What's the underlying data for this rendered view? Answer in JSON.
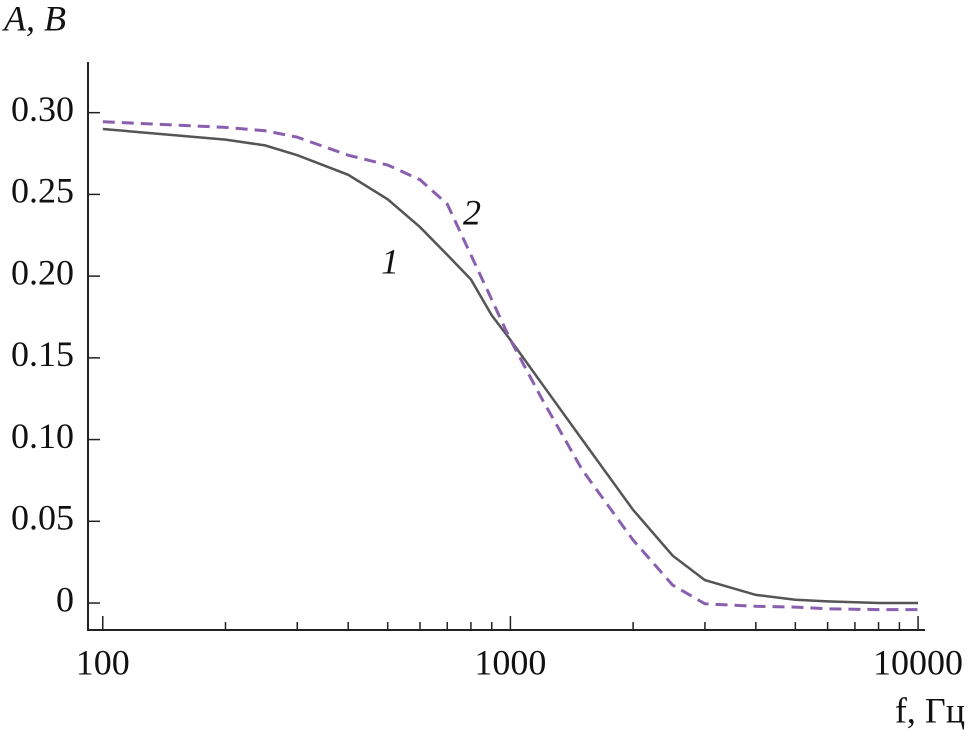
{
  "chart_data": {
    "type": "line",
    "y_label": "A, В",
    "x_label": "f, Гц",
    "log_x": true,
    "x": [
      100,
      200,
      250,
      300,
      400,
      500,
      600,
      700,
      800,
      900,
      1000,
      1200,
      1500,
      2000,
      2500,
      3000,
      4000,
      5000,
      6000,
      8000,
      10000
    ],
    "series": [
      {
        "name": "1",
        "color": "#555555",
        "dash": false,
        "values": [
          0.29,
          0.2835,
          0.28,
          0.274,
          0.262,
          0.247,
          0.23,
          0.213,
          0.198,
          0.176,
          0.161,
          0.1335,
          0.1,
          0.057,
          0.029,
          0.014,
          0.005,
          0.002,
          0.001,
          0.0,
          0.0
        ]
      },
      {
        "name": "2",
        "color": "#8a5fb0",
        "dash": true,
        "values": [
          0.2945,
          0.291,
          0.289,
          0.285,
          0.274,
          0.268,
          0.259,
          0.244,
          0.213,
          0.1855,
          0.161,
          0.124,
          0.0815,
          0.0385,
          0.011,
          -0.0005,
          -0.002,
          -0.0025,
          -0.0035,
          -0.004,
          -0.004
        ]
      }
    ],
    "xlim": [
      92,
      10400
    ],
    "ylim": [
      -0.0165,
      0.331
    ],
    "xticks": [
      100,
      1000,
      10000
    ],
    "yticks": [
      0,
      {
        "value": 0.05,
        "label": "0.05"
      },
      {
        "value": 0.1,
        "label": "0.10"
      },
      {
        "value": 0.15,
        "label": "0.15"
      },
      {
        "value": 0.2,
        "label": "0.20"
      },
      {
        "value": 0.25,
        "label": "0.25"
      },
      {
        "value": 0.3,
        "label": "0.30"
      }
    ]
  }
}
